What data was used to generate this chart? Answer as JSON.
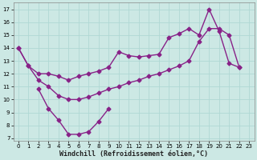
{
  "xlabel": "Windchill (Refroidissement éolien,°C)",
  "bg_color": "#cce8e4",
  "grid_color": "#b0d8d4",
  "line_color": "#882288",
  "x_ticks": [
    0,
    1,
    2,
    3,
    4,
    5,
    6,
    7,
    8,
    9,
    10,
    11,
    12,
    13,
    14,
    15,
    16,
    17,
    18,
    19,
    20,
    21,
    22,
    23
  ],
  "y_ticks": [
    7,
    8,
    9,
    10,
    11,
    12,
    13,
    14,
    15,
    16,
    17
  ],
  "ylim": [
    6.8,
    17.5
  ],
  "xlim": [
    -0.5,
    23.5
  ],
  "line1_x": [
    0,
    1,
    2,
    3,
    4,
    5,
    6,
    7,
    8,
    9,
    10,
    11,
    12,
    13,
    14,
    15,
    16,
    17,
    18,
    19,
    20,
    21,
    22
  ],
  "line1_y": [
    14.0,
    12.6,
    12.0,
    12.0,
    11.8,
    11.5,
    11.8,
    12.0,
    12.2,
    12.5,
    13.7,
    13.4,
    13.3,
    13.4,
    13.5,
    14.8,
    15.1,
    15.5,
    15.0,
    17.0,
    15.3,
    12.8,
    12.5
  ],
  "line2_x": [
    0,
    1,
    2,
    3,
    4,
    5,
    6,
    7,
    8,
    9,
    10,
    11,
    12,
    13,
    14,
    15,
    16,
    17,
    18,
    19,
    20,
    21,
    22
  ],
  "line2_y": [
    14.0,
    12.6,
    11.5,
    11.0,
    10.3,
    10.0,
    10.0,
    10.2,
    10.5,
    10.8,
    11.0,
    11.3,
    11.5,
    11.8,
    12.0,
    12.3,
    12.6,
    13.0,
    14.5,
    15.5,
    15.5,
    15.0,
    12.5
  ],
  "line3_x": [
    2,
    3,
    4,
    5,
    6,
    7,
    8,
    9
  ],
  "line3_y": [
    10.8,
    9.3,
    8.4,
    7.3,
    7.3,
    7.5,
    8.3,
    9.3
  ],
  "marker": "D",
  "markersize": 2.5,
  "linewidth": 1.0,
  "tick_fontsize": 5.0,
  "xlabel_fontsize": 6.0
}
